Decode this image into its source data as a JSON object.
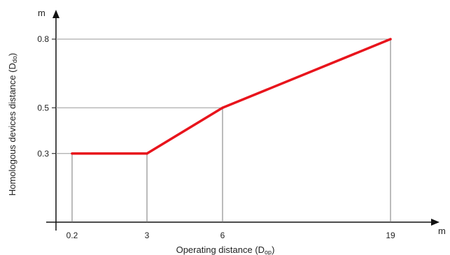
{
  "chart_data": {
    "type": "line",
    "x_categories": [
      "0.2",
      "3",
      "6",
      "19"
    ],
    "x_values": [
      0.2,
      3,
      6,
      19
    ],
    "series": [
      {
        "points": [
          {
            "x": 0.2,
            "y": 0.3
          },
          {
            "x": 3,
            "y": 0.3
          },
          {
            "x": 6,
            "y": 0.5
          },
          {
            "x": 19,
            "y": 0.8
          }
        ]
      }
    ],
    "y_ticks": [
      {
        "value": 0.3,
        "label": "0.3"
      },
      {
        "value": 0.5,
        "label": "0.5"
      },
      {
        "value": 0.8,
        "label": "0.8"
      }
    ],
    "x_unit": "m",
    "y_unit": "m",
    "xlabel": {
      "main": "Operating distance (D",
      "sub": "op",
      "tail": ")"
    },
    "ylabel": {
      "main": "Homologous devices distance (D",
      "sub": "do",
      "tail": ")"
    },
    "ylim": [
      0.0,
      0.8
    ],
    "x_scale": "categorical (non-linear spacing)",
    "grid": "reference lines from points to axes",
    "colors": {
      "line": "#e8141c",
      "axis": "#111111",
      "reference": "#777777",
      "grid": "#9a9a9a"
    }
  }
}
